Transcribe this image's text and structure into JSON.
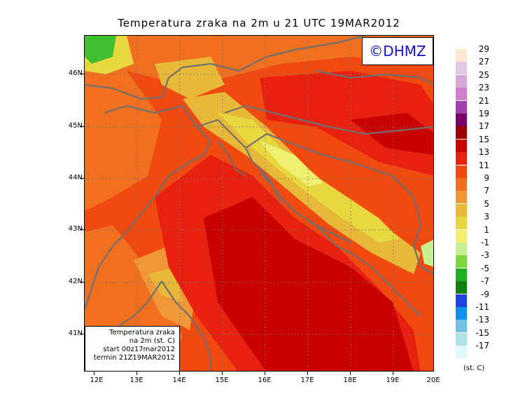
{
  "title": "Temperatura zraka na 2m u 21 UTC 19MAR2012",
  "logo_text": "©DHMZ",
  "info_box": {
    "line1": "Temperatura zraka",
    "line2": "na 2m (st. C)",
    "line3": "start 00z17mar2012",
    "line4": "termin 21Z19MAR2012"
  },
  "lat_labels": [
    "46N",
    "45N",
    "44N",
    "43N",
    "42N",
    "41N"
  ],
  "lon_labels": [
    "12E",
    "13E",
    "14E",
    "15E",
    "16E",
    "17E",
    "18E",
    "19E",
    "20E"
  ],
  "legend": {
    "unit": "(st. C)",
    "labels": [
      "29",
      "27",
      "25",
      "23",
      "21",
      "19",
      "17",
      "15",
      "13",
      "11",
      "9",
      "7",
      "5",
      "3",
      "1",
      "-1",
      "-3",
      "-5",
      "-7",
      "-9",
      "-11",
      "-13",
      "-15",
      "-17"
    ],
    "colors": [
      "#fde8d0",
      "#e0c8e0",
      "#d8a8d8",
      "#cc80cc",
      "#a040b0",
      "#7a0068",
      "#9a0000",
      "#c80000",
      "#e82010",
      "#f04a10",
      "#f07020",
      "#f09838",
      "#e8b838",
      "#e8d840",
      "#f0f070",
      "#c8f090",
      "#80d840",
      "#20b020",
      "#108010",
      "#2040e0",
      "#1090e8",
      "#70c0e8",
      "#b0e0e8",
      "#e0f8f8"
    ]
  },
  "field_colors": {
    "deep_red": "#c80000",
    "red": "#e82010",
    "orange_red": "#f04a10",
    "orange": "#f07020",
    "light_orange": "#f09838",
    "yellow_orange": "#e8b838",
    "yellow": "#e8d840",
    "pale_yellow": "#f0f070",
    "green": "#40c030",
    "coast": "#707070"
  }
}
